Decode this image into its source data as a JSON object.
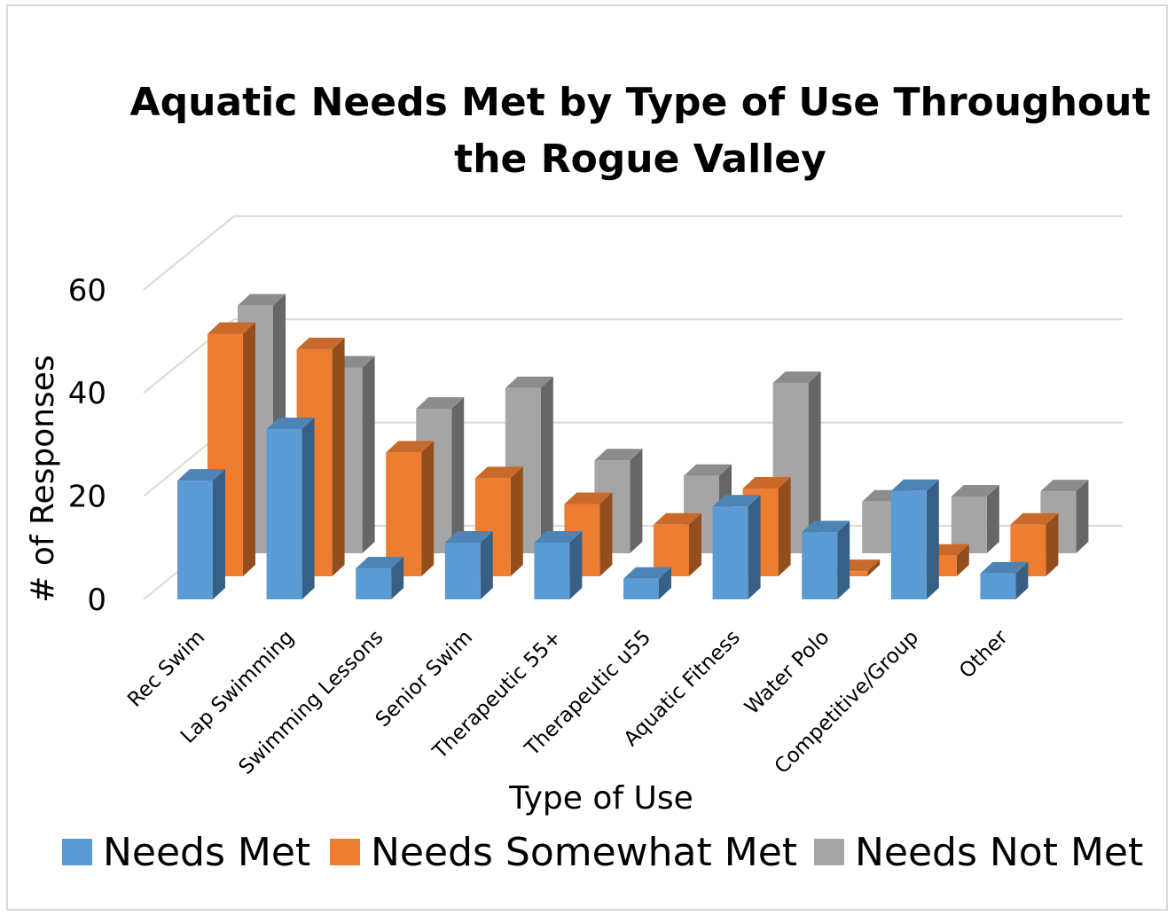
{
  "chart_data": {
    "type": "bar",
    "title_lines": [
      "Aquatic Needs Met by Type of Use Throughout",
      "the Rogue Valley"
    ],
    "xlabel": "Type of Use",
    "ylabel": "# of Responses",
    "ylim": [
      0,
      60
    ],
    "yticks": [
      "0",
      "20",
      "40",
      "60"
    ],
    "categories": [
      "Rec Swim",
      "Lap Swimming",
      "Swimming Lessons",
      "Senior Swim",
      "Therapeutic 55+",
      "Therapeutic u55",
      "Aquatic Fitness",
      "Water Polo",
      "Competitive/Group",
      "Other"
    ],
    "series": [
      {
        "name": "Needs Met",
        "color": "#5b9bd5",
        "values": [
          23,
          33,
          6,
          11,
          11,
          4,
          18,
          13,
          21,
          5
        ]
      },
      {
        "name": "Needs Somewhat Met",
        "color": "#ed7d31",
        "values": [
          47,
          44,
          24,
          19,
          14,
          10,
          17,
          1,
          4,
          10
        ]
      },
      {
        "name": "Needs Not Met",
        "color": "#a5a5a5",
        "values": [
          48,
          36,
          28,
          32,
          18,
          15,
          33,
          10,
          11,
          12
        ]
      }
    ],
    "grid": true,
    "legend_position": "bottom"
  }
}
